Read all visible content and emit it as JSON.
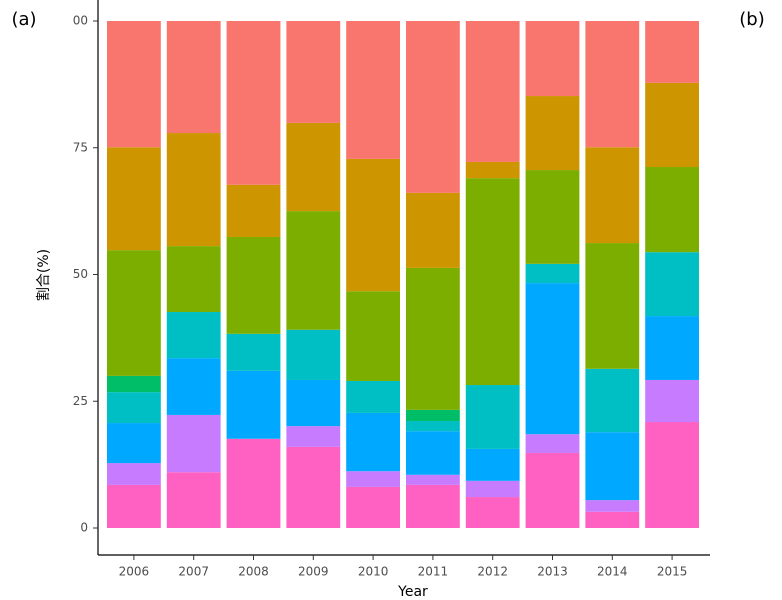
{
  "panel_labels": [
    "(a)",
    "(b)"
  ],
  "chart_data": {
    "type": "stacked-bar",
    "x_label": "Year",
    "y_label": "割合(%)",
    "categories": [
      "2006",
      "2007",
      "2008",
      "2009",
      "2010",
      "2011",
      "2012",
      "2013",
      "2014",
      "2015"
    ],
    "series": [
      {
        "color": "#ff61c3",
        "values": [
          8.5,
          11.0,
          17.6,
          16.0,
          8.1,
          8.5,
          6.1,
          14.8,
          3.2,
          20.9
        ]
      },
      {
        "color": "#c77cff",
        "values": [
          4.3,
          11.3,
          0,
          4.1,
          3.1,
          2.0,
          3.2,
          3.7,
          2.3,
          8.3
        ]
      },
      {
        "color": "#00a9ff",
        "values": [
          7.9,
          11.2,
          13.4,
          9.1,
          11.5,
          8.6,
          6.3,
          29.8,
          13.4,
          12.6
        ]
      },
      {
        "color": "#00bfc4",
        "values": [
          6.1,
          9.1,
          7.3,
          9.9,
          6.3,
          2.0,
          12.6,
          3.8,
          12.5,
          12.6
        ]
      },
      {
        "color": "#00be67",
        "values": [
          3.2,
          0,
          0,
          0,
          0,
          2.2,
          0,
          0,
          0,
          0
        ]
      },
      {
        "color": "#7cae00",
        "values": [
          24.8,
          13.0,
          19.1,
          23.4,
          17.7,
          28.0,
          40.8,
          18.5,
          24.8,
          16.8
        ]
      },
      {
        "color": "#cd9600",
        "values": [
          20.3,
          22.3,
          10.3,
          17.4,
          26.1,
          14.8,
          3.2,
          14.6,
          18.9,
          16.6
        ]
      },
      {
        "color": "#f8766d",
        "values": [
          24.9,
          22.1,
          32.3,
          20.1,
          27.2,
          33.9,
          27.8,
          14.8,
          24.9,
          12.2
        ]
      }
    ],
    "ylim": [
      0,
      100
    ],
    "yticks": [
      0,
      25,
      50,
      75,
      {
        "value": 100,
        "label": "00"
      }
    ],
    "grid": false
  }
}
